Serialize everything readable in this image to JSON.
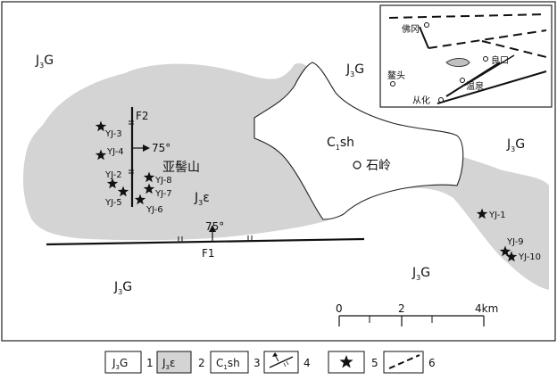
{
  "units": {
    "j3g": {
      "main": "J",
      "sub": "3",
      "tail": "G"
    },
    "j3e": {
      "main": "J",
      "sub": "3",
      "tail": "ε"
    },
    "c1sh": {
      "main": "C",
      "sub": "1",
      "tail": "sh"
    }
  },
  "place_names": {
    "yakeshan": "亚髻山",
    "shiling": "石岭",
    "foshan": "佛冈",
    "liangkou": "良口",
    "gangtou": "鳌头",
    "wenquan": "温泉",
    "conghua": "从化"
  },
  "faults": {
    "f1": "F1",
    "f2": "F2",
    "dip_f2": "75°",
    "dip_f1": "75°"
  },
  "samples": [
    "YJ-1",
    "YJ-2",
    "YJ-3",
    "YJ-4",
    "YJ-5",
    "YJ-6",
    "YJ-7",
    "YJ-8",
    "YJ-9",
    "YJ-10"
  ],
  "scale_bar": {
    "ticks": [
      "0",
      "2",
      "4km"
    ]
  },
  "legend": [
    {
      "num": "1",
      "kind": "j3g"
    },
    {
      "num": "2",
      "kind": "j3e"
    },
    {
      "num": "3",
      "kind": "c1sh"
    },
    {
      "num": "4",
      "kind": "fault-symbol"
    },
    {
      "num": "5",
      "kind": "star"
    },
    {
      "num": "6",
      "kind": "dashed-line"
    }
  ],
  "colors": {
    "granite_fill": "#d4d4d4",
    "ink": "#111111"
  }
}
